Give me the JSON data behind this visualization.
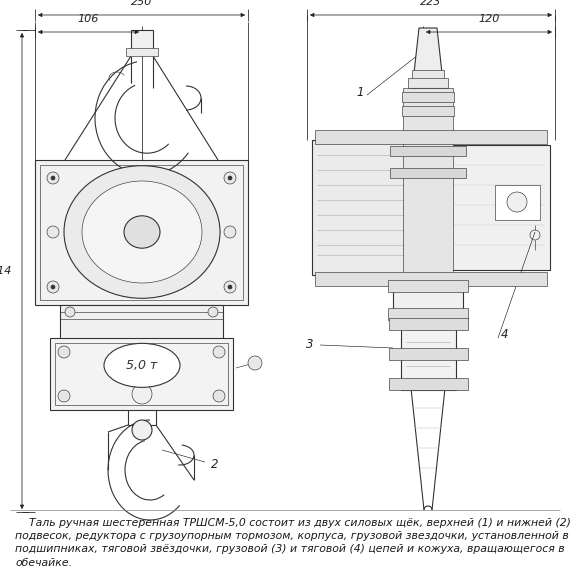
{
  "background_color": "#ffffff",
  "fig_width": 5.7,
  "fig_height": 5.7,
  "dpi": 100,
  "description_text": "    Таль ручная шестеренная ТРШСМ-5,0 состоит из двух силовых щёк, верхней (1) и нижней (2)\nподвесок, редуктора с грузоупорным тормозом, корпуса, грузовой звездочки, установленной в\nподшипниках, тяговой звёздочки, грузовой (3) и тяговой (4) цепей и кожуха, вращающегося в\nобечайке.",
  "description_fontsize": 7.8,
  "dim_color": "#222222",
  "drawing_color": "#333333",
  "lw_main": 0.8,
  "lw_thin": 0.45,
  "lw_dim": 0.55
}
